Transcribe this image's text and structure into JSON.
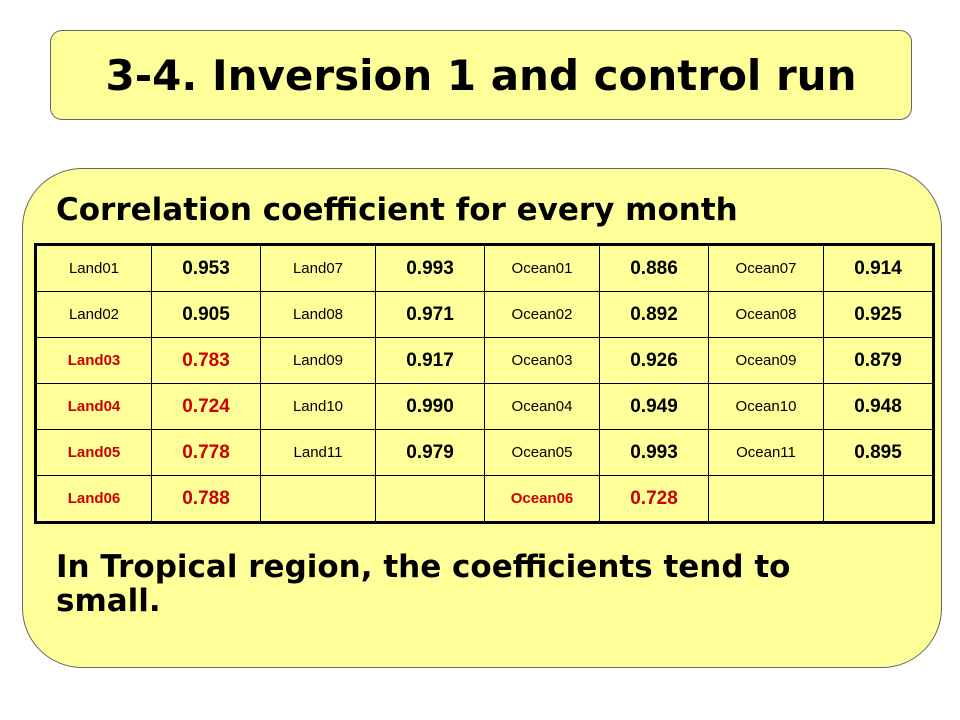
{
  "header": {
    "title": "3-4. Inversion 1 and control run"
  },
  "subtitle": "Correlation coefficient for every month",
  "table": {
    "highlight_color": "#cc0000",
    "rows": [
      [
        {
          "name": "Land01",
          "value": "0.953",
          "highlight": false
        },
        {
          "name": "Land07",
          "value": "0.993",
          "highlight": false
        },
        {
          "name": "Ocean01",
          "value": "0.886",
          "highlight": false
        },
        {
          "name": "Ocean07",
          "value": "0.914",
          "highlight": false
        }
      ],
      [
        {
          "name": "Land02",
          "value": "0.905",
          "highlight": false
        },
        {
          "name": "Land08",
          "value": "0.971",
          "highlight": false
        },
        {
          "name": "Ocean02",
          "value": "0.892",
          "highlight": false
        },
        {
          "name": "Ocean08",
          "value": "0.925",
          "highlight": false
        }
      ],
      [
        {
          "name": "Land03",
          "value": "0.783",
          "highlight": true
        },
        {
          "name": "Land09",
          "value": "0.917",
          "highlight": false
        },
        {
          "name": "Ocean03",
          "value": "0.926",
          "highlight": false
        },
        {
          "name": "Ocean09",
          "value": "0.879",
          "highlight": false
        }
      ],
      [
        {
          "name": "Land04",
          "value": "0.724",
          "highlight": true
        },
        {
          "name": "Land10",
          "value": "0.990",
          "highlight": false
        },
        {
          "name": "Ocean04",
          "value": "0.949",
          "highlight": false
        },
        {
          "name": "Ocean10",
          "value": "0.948",
          "highlight": false
        }
      ],
      [
        {
          "name": "Land05",
          "value": "0.778",
          "highlight": true
        },
        {
          "name": "Land11",
          "value": "0.979",
          "highlight": false
        },
        {
          "name": "Ocean05",
          "value": "0.993",
          "highlight": false
        },
        {
          "name": "Ocean11",
          "value": "0.895",
          "highlight": false
        }
      ],
      [
        {
          "name": "Land06",
          "value": "0.788",
          "highlight": true
        },
        null,
        {
          "name": "Ocean06",
          "value": "0.728",
          "highlight": true
        },
        null
      ]
    ]
  },
  "note": "In Tropical region, the coefficients tend to small."
}
